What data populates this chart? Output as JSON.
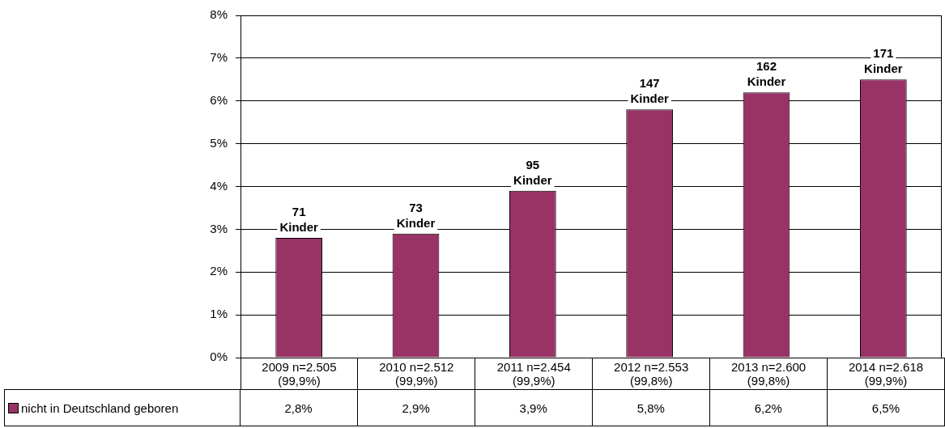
{
  "chart_data": {
    "type": "bar",
    "categories": [
      "2009 n=2.505 (99,9%)",
      "2010 n=2.512 (99,9%)",
      "2011 n=2.454 (99,9%)",
      "2012 n=2.553 (99,8%)",
      "2013 n=2.600 (99,8%)",
      "2014 n=2.618 (99,9%)"
    ],
    "series": [
      {
        "name": "nicht in Deutschland geboren",
        "color": "#993366",
        "values": [
          2.8,
          2.9,
          3.9,
          5.8,
          6.2,
          6.5
        ],
        "value_labels": [
          "2,8%",
          "2,9%",
          "3,9%",
          "5,8%",
          "6,2%",
          "6,5%"
        ]
      }
    ],
    "ylim": [
      0,
      8
    ],
    "yticks": [
      {
        "value": 0,
        "label": "0%"
      },
      {
        "value": 1,
        "label": "1%"
      },
      {
        "value": 2,
        "label": "2%"
      },
      {
        "value": 3,
        "label": "3%"
      },
      {
        "value": 4,
        "label": "4%"
      },
      {
        "value": 5,
        "label": "5%"
      },
      {
        "value": 6,
        "label": "6%"
      },
      {
        "value": 7,
        "label": "7%"
      },
      {
        "value": 8,
        "label": "8%"
      }
    ],
    "grid": "y",
    "legend": "bottom left",
    "annotations": [
      "71 Kinder",
      "73 Kinder",
      "95 Kinder",
      "147 Kinder",
      "162 Kinder",
      "171 Kinder"
    ]
  }
}
